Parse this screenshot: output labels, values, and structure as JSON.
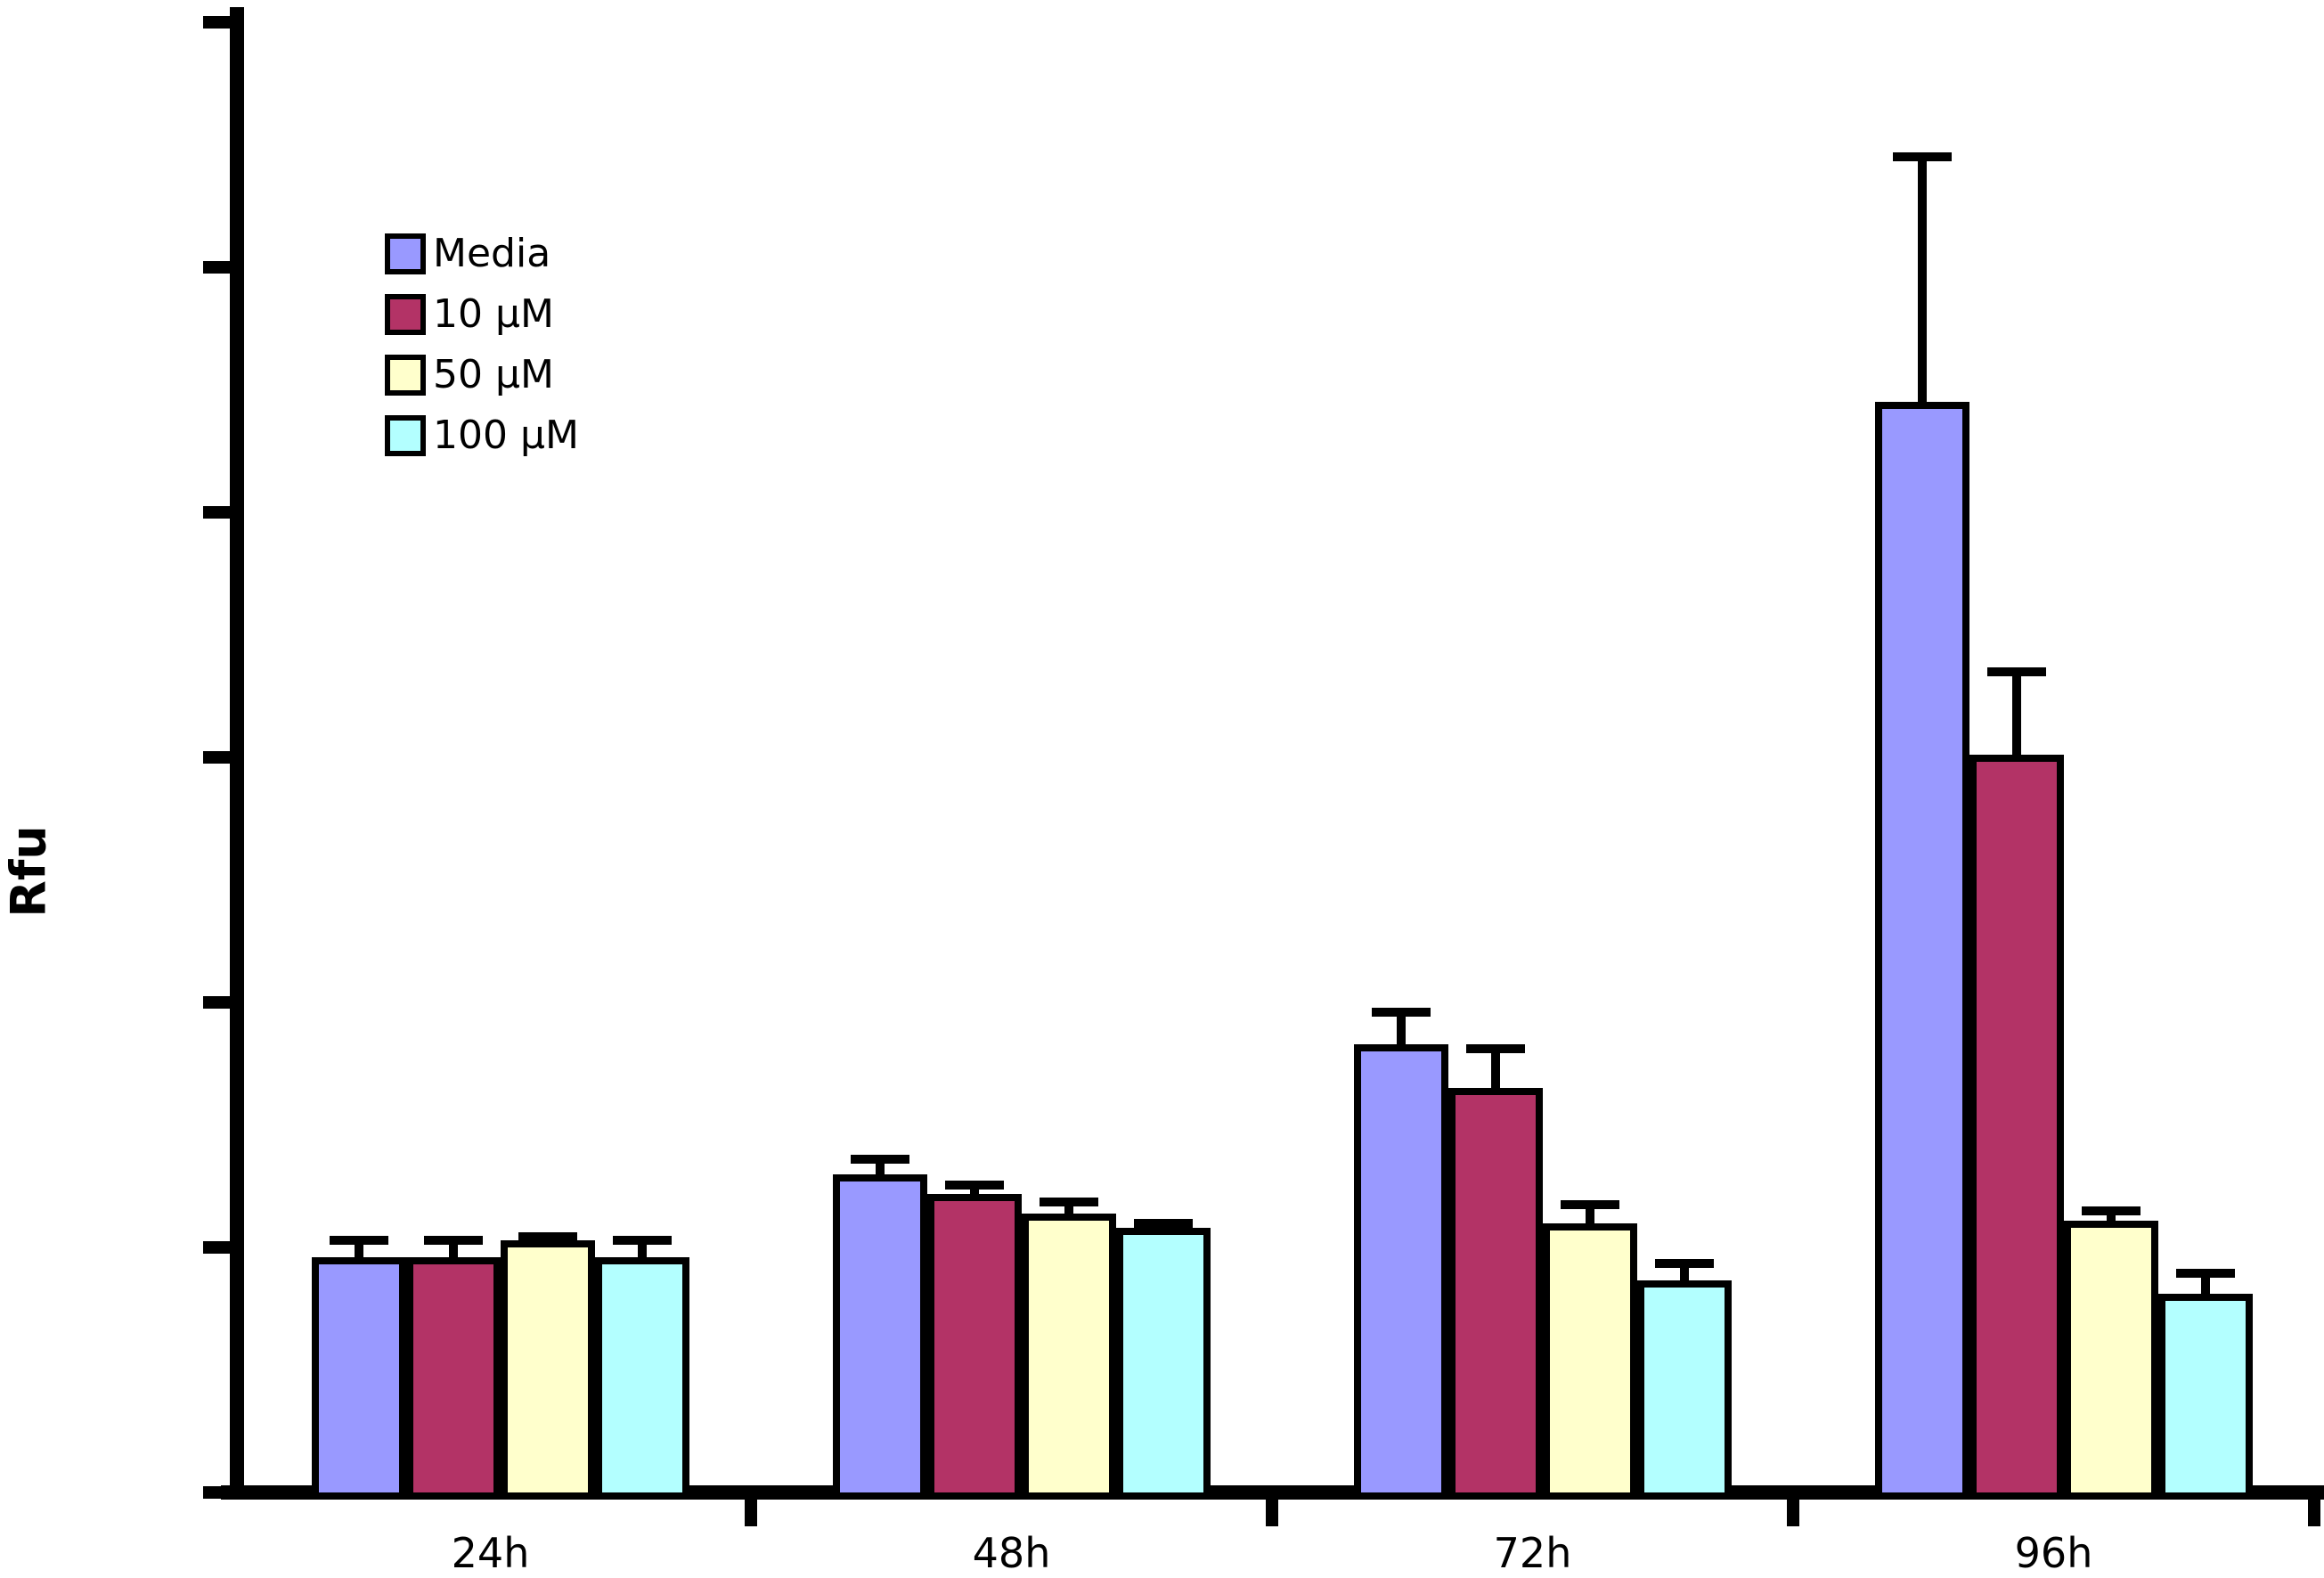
{
  "chart_data": {
    "type": "bar",
    "title": "",
    "xlabel": "",
    "ylabel": "Rfu",
    "categories": [
      "24h",
      "48h",
      "72h",
      "96h"
    ],
    "series": [
      {
        "name": "Media",
        "color": "#9999FF",
        "values": [
          960,
          1300,
          1830,
          4450
        ],
        "errors_plus": [
          70,
          60,
          130,
          1000
        ]
      },
      {
        "name": "10 µM",
        "color": "#B33366",
        "values": [
          960,
          1220,
          1650,
          3010
        ],
        "errors_plus": [
          70,
          35,
          160,
          340
        ]
      },
      {
        "name": "50 µM",
        "color": "#FFFFCC",
        "values": [
          1030,
          1140,
          1100,
          1110
        ],
        "errors_plus": [
          15,
          45,
          75,
          40
        ]
      },
      {
        "name": "100 µM",
        "color": "#B3FFFF",
        "values": [
          960,
          1080,
          865,
          810
        ],
        "errors_plus": [
          70,
          20,
          70,
          85
        ]
      }
    ],
    "ylim": [
      0,
      6000
    ],
    "yticks": [
      0,
      1000,
      2000,
      3000,
      4000,
      5000,
      6000
    ],
    "grid": false,
    "error_bars": true,
    "legend_position": "top-left-inside",
    "bar_outline_color": "#000000",
    "axis_color": "#000000",
    "background_color": "#FFFFFF"
  }
}
